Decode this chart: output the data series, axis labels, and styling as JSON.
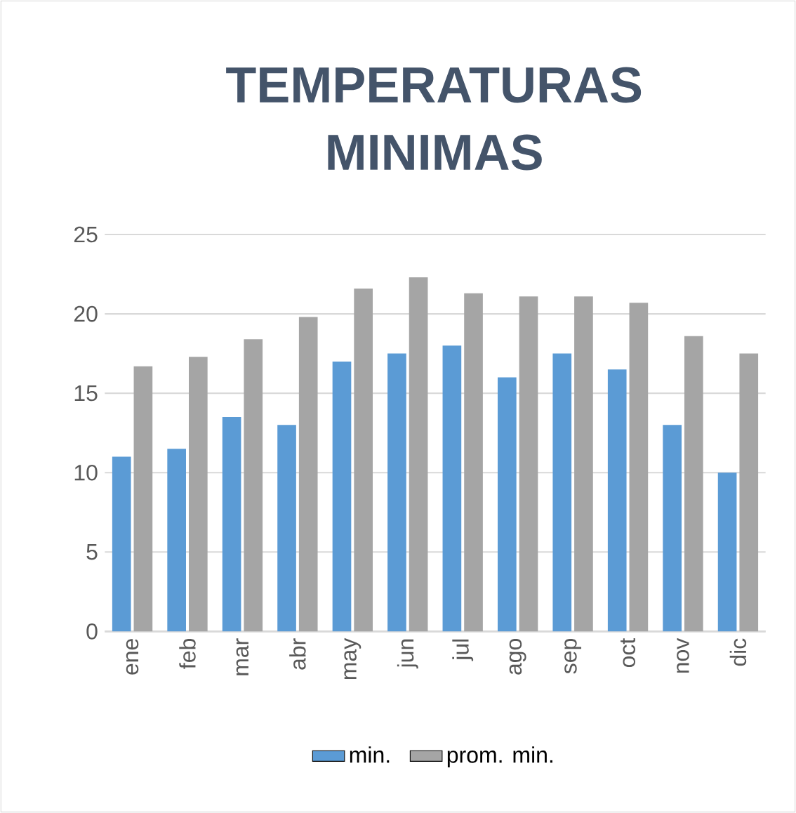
{
  "chart_data": {
    "type": "bar",
    "title": "TEMPERATURAS MINIMAS",
    "categories": [
      "ene",
      "feb",
      "mar",
      "abr",
      "may",
      "jun",
      "jul",
      "ago",
      "sep",
      "oct",
      "nov",
      "dic"
    ],
    "series": [
      {
        "name": "min.",
        "color": "#5b9bd5",
        "values": [
          11,
          11.5,
          13.5,
          13,
          17,
          17.5,
          18,
          16,
          17.5,
          16.5,
          13,
          10
        ]
      },
      {
        "name": "prom. min.",
        "color": "#a5a5a5",
        "values": [
          16.7,
          17.3,
          18.4,
          19.8,
          21.6,
          22.3,
          21.3,
          21.1,
          21.1,
          20.7,
          18.6,
          17.5
        ]
      }
    ],
    "ylim": [
      0,
      25
    ],
    "yticks": [
      0,
      5,
      10,
      15,
      20,
      25
    ],
    "grid": "y",
    "legend": "bottom"
  }
}
